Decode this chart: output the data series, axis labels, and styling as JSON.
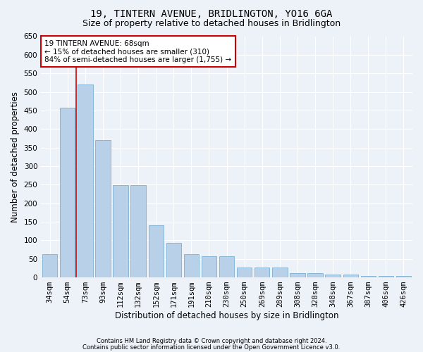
{
  "title": "19, TINTERN AVENUE, BRIDLINGTON, YO16 6GA",
  "subtitle": "Size of property relative to detached houses in Bridlington",
  "xlabel": "Distribution of detached houses by size in Bridlington",
  "ylabel": "Number of detached properties",
  "categories": [
    "34sqm",
    "54sqm",
    "73sqm",
    "93sqm",
    "112sqm",
    "132sqm",
    "152sqm",
    "171sqm",
    "191sqm",
    "210sqm",
    "230sqm",
    "250sqm",
    "269sqm",
    "289sqm",
    "308sqm",
    "328sqm",
    "348sqm",
    "367sqm",
    "387sqm",
    "406sqm",
    "426sqm"
  ],
  "values": [
    62,
    458,
    520,
    370,
    248,
    248,
    140,
    93,
    62,
    58,
    57,
    27,
    27,
    27,
    12,
    12,
    7,
    8,
    4,
    4,
    4
  ],
  "bar_color": "#b8d0e8",
  "bar_edgecolor": "#7aafd4",
  "vline_color": "#cc0000",
  "vline_x_pos": 1.5,
  "annotation_line1": "19 TINTERN AVENUE: 68sqm",
  "annotation_line2": "← 15% of detached houses are smaller (310)",
  "annotation_line3": "84% of semi-detached houses are larger (1,755) →",
  "annotation_box_color": "#ffffff",
  "annotation_box_edgecolor": "#cc0000",
  "ylim": [
    0,
    650
  ],
  "yticks": [
    0,
    50,
    100,
    150,
    200,
    250,
    300,
    350,
    400,
    450,
    500,
    550,
    600,
    650
  ],
  "footer1": "Contains HM Land Registry data © Crown copyright and database right 2024.",
  "footer2": "Contains public sector information licensed under the Open Government Licence v3.0.",
  "bg_color": "#edf2f9",
  "plot_bg_color": "#edf2f9",
  "grid_color": "#ffffff",
  "title_fontsize": 10,
  "subtitle_fontsize": 9,
  "xlabel_fontsize": 8.5,
  "ylabel_fontsize": 8.5,
  "tick_fontsize": 7.5,
  "annotation_fontsize": 7.5,
  "footer_fontsize": 6
}
